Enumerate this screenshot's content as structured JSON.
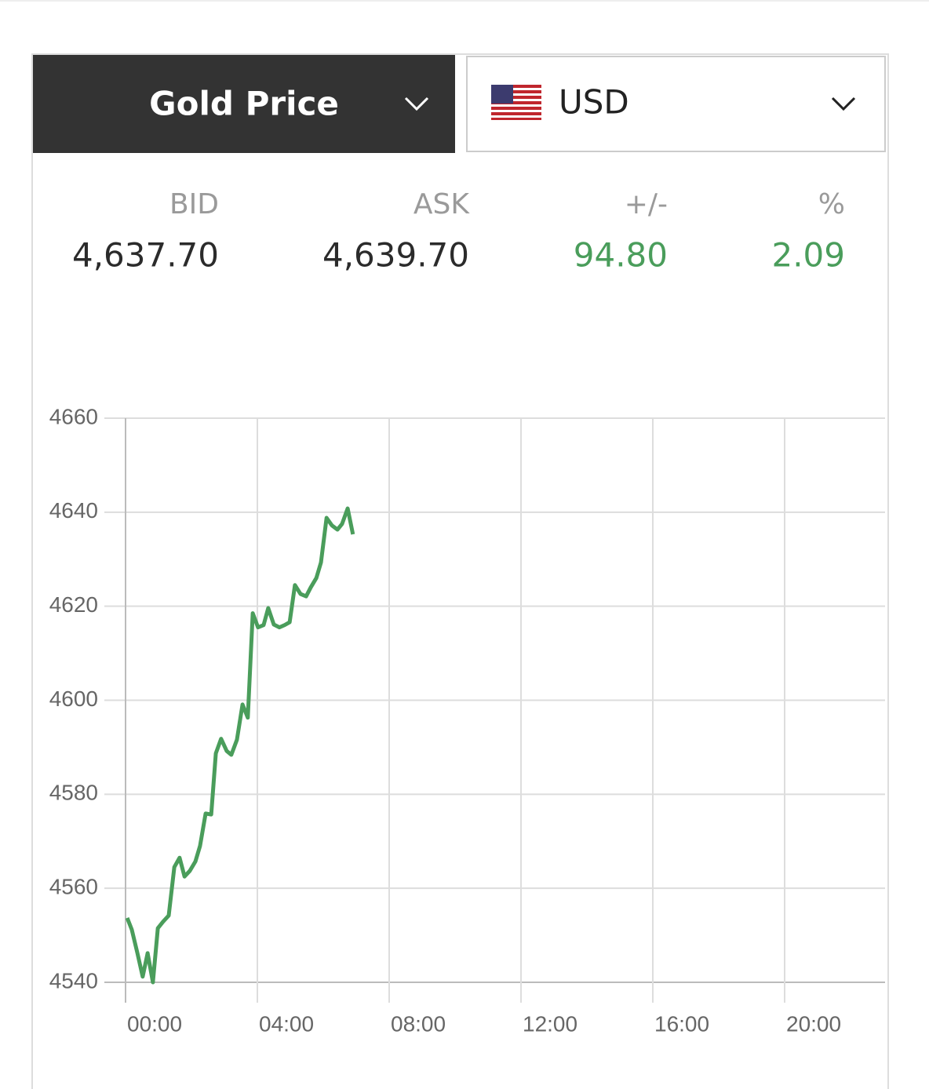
{
  "header": {
    "title": "Gold Price",
    "currency": "USD"
  },
  "quotes": [
    {
      "label": "BID",
      "value": "4,637.70"
    },
    {
      "label": "ASK",
      "value": "4,639.70"
    },
    {
      "label": "+/-",
      "value": "94.80"
    },
    {
      "label": "%",
      "value": "2.09"
    }
  ],
  "chart_data": {
    "type": "line",
    "color": "#4a9d5b",
    "x": [
      0.05,
      0.19,
      0.36,
      0.52,
      0.67,
      0.83,
      0.98,
      1.14,
      1.31,
      1.48,
      1.64,
      1.79,
      1.95,
      2.12,
      2.26,
      2.43,
      2.6,
      2.74,
      2.9,
      3.07,
      3.21,
      3.38,
      3.55,
      3.71,
      3.86,
      4.02,
      4.19,
      4.33,
      4.5,
      4.67,
      4.83,
      4.98,
      5.14,
      5.31,
      5.48,
      5.62,
      5.79,
      5.93,
      6.1,
      6.26,
      6.43,
      6.57,
      6.74,
      6.9
    ],
    "values": [
      4553.7,
      4551.2,
      4546.2,
      4541.2,
      4546.2,
      4540,
      4551.5,
      4552.9,
      4554.2,
      4564.5,
      4566.5,
      4562.5,
      4563.7,
      4565.7,
      4569,
      4575.9,
      4575.7,
      4588.7,
      4591.8,
      4589.2,
      4588.4,
      4591.6,
      4599.1,
      4596.3,
      4618.5,
      4615.5,
      4616,
      4619.6,
      4616.1,
      4615.5,
      4616,
      4616.6,
      4624.5,
      4622.6,
      4622.1,
      4624,
      4626,
      4629.3,
      4638.8,
      4637.2,
      4636.3,
      4637.5,
      4640.8,
      4635.3
    ],
    "xlim": [
      0,
      23
    ],
    "xticks": [
      {
        "value": 0,
        "label": "00:00"
      },
      {
        "value": 4,
        "label": "04:00"
      },
      {
        "value": 8,
        "label": "08:00"
      },
      {
        "value": 12,
        "label": "12:00"
      },
      {
        "value": 16,
        "label": "16:00"
      },
      {
        "value": 20,
        "label": "20:00"
      }
    ],
    "ylim": [
      4540,
      4660
    ],
    "yticks": [
      4540,
      4560,
      4580,
      4600,
      4620,
      4640,
      4660
    ],
    "grid": true
  }
}
